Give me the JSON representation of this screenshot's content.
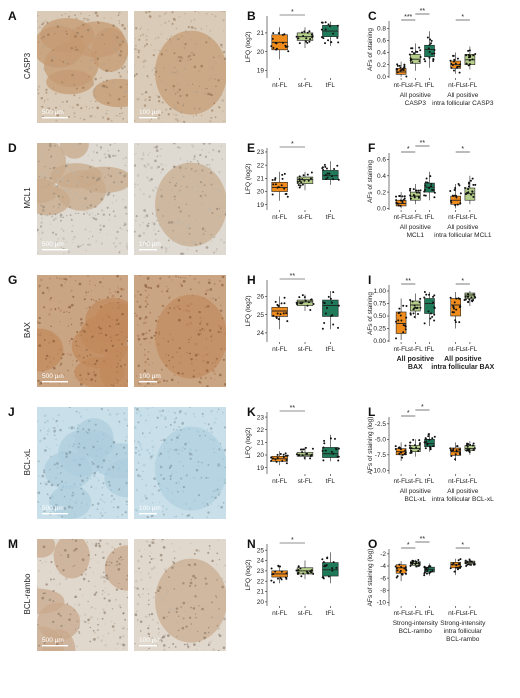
{
  "colors": {
    "nt-FL": "#f08c1c",
    "st-FL": "#b5cf8a",
    "tFL": "#1f7a5a"
  },
  "rows": [
    {
      "id": "row1",
      "micro_letter": "A",
      "marker": "CASP3",
      "scale_left": "500 µm",
      "scale_right": "100 µm",
      "tissue": {
        "base": "#b5a089",
        "blob": "#c49a72",
        "dots": "#8e6e4e",
        "light": "#d9cbb8"
      },
      "lfq": {
        "letter": "B",
        "ylabel": "LFQ (log2)",
        "yticks": [
          19,
          20,
          21
        ],
        "ylim": [
          18.6,
          21.9
        ],
        "groups": [
          {
            "label": "nt-FL",
            "color_key": "nt-FL",
            "box": [
              19.6,
              20.1,
              20.5,
              20.9,
              21.3
            ]
          },
          {
            "label": "st-FL",
            "color_key": "st-FL",
            "box": [
              20.2,
              20.6,
              20.8,
              21.0,
              21.3
            ]
          },
          {
            "label": "tFL",
            "color_key": "tFL",
            "box": [
              20.3,
              20.8,
              21.1,
              21.4,
              21.6
            ]
          }
        ],
        "sig": [
          {
            "from": 0,
            "to": 1,
            "text": "*"
          }
        ]
      },
      "afs": {
        "letter": "C",
        "ylabel": "AFs of staining",
        "yticks": [
          0.0,
          0.2,
          0.4,
          0.6,
          0.8
        ],
        "yticklabels": [
          "0.0",
          "0.2",
          "0.4",
          "0.6",
          "0.8"
        ],
        "ylim": [
          -0.02,
          0.92
        ],
        "blocks": [
          {
            "groups": [
              {
                "label": "nt-FL",
                "color_key": "nt-FL",
                "box": [
                  0.0,
                  0.04,
                  0.08,
                  0.14,
                  0.25
                ]
              },
              {
                "label": "st-FL",
                "color_key": "st-FL",
                "box": [
                  0.1,
                  0.22,
                  0.29,
                  0.37,
                  0.55
                ]
              },
              {
                "label": "tFL",
                "color_key": "tFL",
                "box": [
                  0.15,
                  0.33,
                  0.45,
                  0.52,
                  0.75
                ]
              }
            ],
            "caption": [
              "All positive",
              "CASP3"
            ]
          },
          {
            "groups": [
              {
                "label": "nt-FL",
                "color_key": "nt-FL",
                "box": [
                  0.05,
                  0.14,
                  0.2,
                  0.26,
                  0.4
                ]
              },
              {
                "label": "st-FL",
                "color_key": "st-FL",
                "box": [
                  0.12,
                  0.2,
                  0.28,
                  0.37,
                  0.5
                ]
              }
            ],
            "caption": [
              "All positive",
              "intra follicular CASP3"
            ]
          }
        ],
        "sig": [
          {
            "block": 0,
            "from": 0,
            "to": 1,
            "text": "***",
            "level": 0
          },
          {
            "block": 0,
            "from": 1,
            "to": 2,
            "text": "**",
            "level": 1
          },
          {
            "block": 1,
            "from": 0,
            "to": 1,
            "text": "*",
            "level": 0
          }
        ]
      }
    },
    {
      "id": "row2",
      "micro_letter": "D",
      "marker": "MCL1",
      "scale_left": "500 µm",
      "scale_right": "100 µm",
      "tissue": {
        "base": "#bcb5a8",
        "blob": "#c8a98a",
        "dots": "#8a8070",
        "light": "#dedad2"
      },
      "lfq": {
        "letter": "E",
        "ylabel": "LFQ (log2)",
        "yticks": [
          19,
          20,
          21,
          22,
          23
        ],
        "ylim": [
          18.6,
          23.3
        ],
        "groups": [
          {
            "label": "nt-FL",
            "color_key": "nt-FL",
            "box": [
              19.3,
              20.0,
              20.3,
              20.7,
              21.5
            ]
          },
          {
            "label": "st-FL",
            "color_key": "st-FL",
            "box": [
              20.1,
              20.6,
              20.9,
              21.1,
              21.5
            ]
          },
          {
            "label": "tFL",
            "color_key": "tFL",
            "box": [
              20.5,
              20.9,
              21.2,
              21.6,
              22.3
            ]
          }
        ],
        "sig": [
          {
            "from": 0,
            "to": 1,
            "text": "*"
          }
        ]
      },
      "afs": {
        "letter": "F",
        "ylabel": "AFs of staining",
        "yticks": [
          0.0,
          0.2,
          0.4,
          0.6
        ],
        "yticklabels": [
          "0.0",
          "0.2",
          "0.4",
          "0.6"
        ],
        "ylim": [
          -0.02,
          0.68
        ],
        "blocks": [
          {
            "groups": [
              {
                "label": "nt-FL",
                "color_key": "nt-FL",
                "box": [
                  0.0,
                  0.03,
                  0.06,
                  0.1,
                  0.2
                ]
              },
              {
                "label": "st-FL",
                "color_key": "st-FL",
                "box": [
                  0.05,
                  0.1,
                  0.15,
                  0.2,
                  0.3
                ]
              },
              {
                "label": "tFL",
                "color_key": "tFL",
                "box": [
                  0.1,
                  0.2,
                  0.26,
                  0.31,
                  0.45
                ]
              }
            ],
            "caption": [
              "All positive",
              "MCL1"
            ]
          },
          {
            "groups": [
              {
                "label": "nt-FL",
                "color_key": "nt-FL",
                "box": [
                  0.0,
                  0.05,
                  0.1,
                  0.15,
                  0.3
                ]
              },
              {
                "label": "st-FL",
                "color_key": "st-FL",
                "box": [
                  0.05,
                  0.1,
                  0.18,
                  0.25,
                  0.4
                ]
              }
            ],
            "caption": [
              "All positive",
              "intra follicular MCL1"
            ]
          }
        ],
        "sig": [
          {
            "block": 0,
            "from": 0,
            "to": 1,
            "text": "*",
            "level": 0
          },
          {
            "block": 0,
            "from": 1,
            "to": 2,
            "text": "**",
            "level": 1
          },
          {
            "block": 1,
            "from": 0,
            "to": 1,
            "text": "*",
            "level": 0
          }
        ]
      }
    },
    {
      "id": "row3",
      "micro_letter": "G",
      "marker": "BAX",
      "scale_left": "500 µm",
      "scale_right": "100 µm",
      "tissue": {
        "base": "#b07c52",
        "blob": "#c28a5c",
        "dots": "#7a4e2e",
        "light": "#caa584"
      },
      "lfq": {
        "letter": "H",
        "ylabel": "LFQ (log2)",
        "yticks": [
          24,
          25,
          26
        ],
        "ylim": [
          23.5,
          26.9
        ],
        "groups": [
          {
            "label": "nt-FL",
            "color_key": "nt-FL",
            "box": [
              24.2,
              24.9,
              25.2,
              25.4,
              26.0
            ]
          },
          {
            "label": "st-FL",
            "color_key": "st-FL",
            "box": [
              25.2,
              25.5,
              25.7,
              25.8,
              26.1
            ]
          },
          {
            "label": "tFL",
            "color_key": "tFL",
            "box": [
              24.2,
              24.9,
              25.5,
              25.8,
              26.3
            ]
          }
        ],
        "sig": [
          {
            "from": 0,
            "to": 1,
            "text": "**"
          }
        ]
      },
      "afs": {
        "letter": "I",
        "ylabel": "AFs of staining",
        "yticks": [
          0.0,
          0.25,
          0.5,
          0.75,
          1.0
        ],
        "yticklabels": [
          "0.00",
          "0.25",
          "0.50",
          "0.75",
          "1.00"
        ],
        "ylim": [
          -0.02,
          1.12
        ],
        "blocks": [
          {
            "groups": [
              {
                "label": "nt-FL",
                "color_key": "nt-FL",
                "box": [
                  0.02,
                  0.15,
                  0.35,
                  0.58,
                  0.85
                ]
              },
              {
                "label": "st-FL",
                "color_key": "st-FL",
                "box": [
                  0.45,
                  0.6,
                  0.72,
                  0.8,
                  0.95
                ]
              },
              {
                "label": "tFL",
                "color_key": "tFL",
                "box": [
                  0.3,
                  0.55,
                  0.75,
                  0.85,
                  0.98
                ]
              }
            ],
            "caption": [
              "All positive",
              "BAX"
            ],
            "bold": true
          },
          {
            "groups": [
              {
                "label": "nt-FL",
                "color_key": "nt-FL",
                "box": [
                  0.25,
                  0.5,
                  0.72,
                  0.85,
                  0.98
                ]
              },
              {
                "label": "st-FL",
                "color_key": "st-FL",
                "box": [
                  0.7,
                  0.85,
                  0.92,
                  0.96,
                  1.0
                ]
              }
            ],
            "caption": [
              "All positive",
              "intra follicular BAX"
            ],
            "bold": true
          }
        ],
        "sig": [
          {
            "block": 0,
            "from": 0,
            "to": 1,
            "text": "**",
            "level": 0
          },
          {
            "block": 1,
            "from": 0,
            "to": 1,
            "text": "*",
            "level": 0
          }
        ]
      }
    },
    {
      "id": "row4",
      "micro_letter": "J",
      "marker": "BCL-xL",
      "scale_left": "500 µm",
      "scale_right": "100 µm",
      "tissue": {
        "base": "#9ec3d6",
        "blob": "#aecede",
        "dots": "#7a8c96",
        "light": "#c9dfe9"
      },
      "lfq": {
        "letter": "K",
        "ylabel": "LFQ (log2)",
        "yticks": [
          19,
          20,
          21,
          22,
          23
        ],
        "ylim": [
          18.5,
          23.4
        ],
        "groups": [
          {
            "label": "nt-FL",
            "color_key": "nt-FL",
            "box": [
              19.2,
              19.5,
              19.7,
              19.9,
              20.3
            ]
          },
          {
            "label": "st-FL",
            "color_key": "st-FL",
            "box": [
              19.6,
              19.9,
              20.0,
              20.2,
              20.6
            ]
          },
          {
            "label": "tFL",
            "color_key": "tFL",
            "box": [
              19.5,
              19.8,
              20.1,
              20.6,
              21.6
            ]
          }
        ],
        "sig": [
          {
            "from": 0,
            "to": 1,
            "text": "**"
          }
        ]
      },
      "afs": {
        "letter": "L",
        "ylabel": "AFs of staining (log)",
        "yticks": [
          -10.0,
          -7.5,
          -5.0,
          -2.5
        ],
        "yticklabels": [
          "-10.0",
          "-7.5",
          "-5.0",
          "-2.5"
        ],
        "ylim": [
          -10.6,
          -1.4
        ],
        "blocks": [
          {
            "groups": [
              {
                "label": "nt-FL",
                "color_key": "nt-FL",
                "box": [
                  -8.5,
                  -7.5,
                  -7.0,
                  -6.5,
                  -5.5
                ]
              },
              {
                "label": "st-FL",
                "color_key": "st-FL",
                "box": [
                  -7.8,
                  -7.0,
                  -6.5,
                  -6.0,
                  -5.0
                ]
              },
              {
                "label": "tFL",
                "color_key": "tFL",
                "box": [
                  -7.0,
                  -6.2,
                  -5.7,
                  -5.0,
                  -4.0
                ]
              }
            ],
            "caption": [
              "All positive",
              "BCL-xL"
            ]
          },
          {
            "groups": [
              {
                "label": "nt-FL",
                "color_key": "nt-FL",
                "box": [
                  -8.5,
                  -7.6,
                  -7.0,
                  -6.4,
                  -5.5
                ]
              },
              {
                "label": "st-FL",
                "color_key": "st-FL",
                "box": [
                  -7.5,
                  -6.8,
                  -6.5,
                  -6.0,
                  -5.3
                ]
              }
            ],
            "caption": [
              "All positive",
              "intra follicular BCL-xL"
            ]
          }
        ],
        "sig": [
          {
            "block": 0,
            "from": 0,
            "to": 1,
            "text": "*",
            "level": 0
          },
          {
            "block": 0,
            "from": 1,
            "to": 2,
            "text": "*",
            "level": 1
          }
        ]
      }
    },
    {
      "id": "row5",
      "micro_letter": "M",
      "marker": "BCL-rambo",
      "scale_left": "500 µm",
      "scale_right": "100 µm",
      "tissue": {
        "base": "#c2b6a6",
        "blob": "#c9aa8c",
        "dots": "#7d6a58",
        "light": "#e0d8cd"
      },
      "lfq": {
        "letter": "N",
        "ylabel": "LFQ (log2)",
        "yticks": [
          20,
          21,
          22,
          23,
          24,
          25
        ],
        "ylim": [
          19.6,
          25.6
        ],
        "groups": [
          {
            "label": "nt-FL",
            "color_key": "nt-FL",
            "box": [
              21.8,
              22.4,
              22.7,
              23.0,
              23.5
            ]
          },
          {
            "label": "st-FL",
            "color_key": "st-FL",
            "box": [
              22.2,
              22.7,
              23.0,
              23.3,
              24.0
            ]
          },
          {
            "label": "tFL",
            "color_key": "tFL",
            "box": [
              21.8,
              22.5,
              23.1,
              23.8,
              24.8
            ]
          }
        ],
        "sig": [
          {
            "from": 0,
            "to": 1,
            "text": "*"
          }
        ]
      },
      "afs": {
        "letter": "O",
        "ylabel": "AFs of staining (log)",
        "yticks": [
          -10,
          -8,
          -6,
          -4,
          -2
        ],
        "yticklabels": [
          "-10",
          "-8",
          "-6",
          "-4",
          "-2"
        ],
        "ylim": [
          -10.6,
          -1.2
        ],
        "blocks": [
          {
            "groups": [
              {
                "label": "nt-FL",
                "color_key": "nt-FL",
                "box": [
                  -6.5,
                  -5.2,
                  -4.3,
                  -3.8,
                  -3.2
                ]
              },
              {
                "label": "st-FL",
                "color_key": "st-FL",
                "box": [
                  -4.2,
                  -3.9,
                  -3.6,
                  -3.3,
                  -3.0
                ]
              },
              {
                "label": "tFL",
                "color_key": "tFL",
                "box": [
                  -5.6,
                  -5.0,
                  -4.6,
                  -4.2,
                  -3.6
                ]
              }
            ],
            "caption": [
              "Strong-intensity",
              "BCL-rambo"
            ]
          },
          {
            "groups": [
              {
                "label": "nt-FL",
                "color_key": "nt-FL",
                "box": [
                  -5.5,
                  -4.3,
                  -3.8,
                  -3.4,
                  -2.8
                ]
              },
              {
                "label": "st-FL",
                "color_key": "st-FL",
                "box": [
                  -4.0,
                  -3.6,
                  -3.4,
                  -3.2,
                  -2.9
                ]
              }
            ],
            "caption": [
              "Strong-intensity",
              "intra follicular",
              "BCL-rambo"
            ]
          }
        ],
        "sig": [
          {
            "block": 0,
            "from": 0,
            "to": 1,
            "text": "*",
            "level": 0
          },
          {
            "block": 0,
            "from": 1,
            "to": 2,
            "text": "**",
            "level": 1
          },
          {
            "block": 1,
            "from": 0,
            "to": 1,
            "text": "*",
            "level": 0
          }
        ]
      }
    }
  ]
}
